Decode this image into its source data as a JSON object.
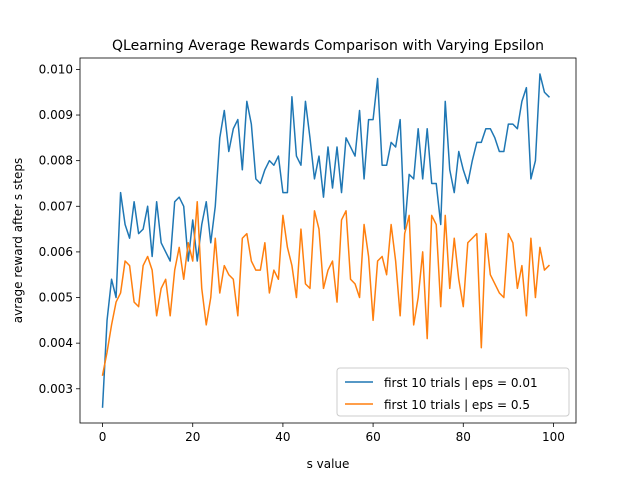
{
  "chart_data": {
    "type": "line",
    "title": "QLearning Average Rewards Comparison with Varying Epsilon",
    "xlabel": "s value",
    "ylabel": "avrage reward after s steps",
    "xlim": [
      -5,
      105
    ],
    "ylim": [
      0.00225,
      0.01025
    ],
    "xticks": [
      0,
      20,
      40,
      60,
      80,
      100
    ],
    "xtick_labels": [
      "0",
      "20",
      "40",
      "60",
      "80",
      "100"
    ],
    "yticks": [
      0.003,
      0.004,
      0.005,
      0.006,
      0.007,
      0.008,
      0.009,
      0.01
    ],
    "ytick_labels": [
      "0.003",
      "0.004",
      "0.005",
      "0.006",
      "0.007",
      "0.008",
      "0.009",
      "0.010"
    ],
    "grid": false,
    "legend_position": "lower right",
    "x": [
      0,
      1,
      2,
      3,
      4,
      5,
      6,
      7,
      8,
      9,
      10,
      11,
      12,
      13,
      14,
      15,
      16,
      17,
      18,
      19,
      20,
      21,
      22,
      23,
      24,
      25,
      26,
      27,
      28,
      29,
      30,
      31,
      32,
      33,
      34,
      35,
      36,
      37,
      38,
      39,
      40,
      41,
      42,
      43,
      44,
      45,
      46,
      47,
      48,
      49,
      50,
      51,
      52,
      53,
      54,
      55,
      56,
      57,
      58,
      59,
      60,
      61,
      62,
      63,
      64,
      65,
      66,
      67,
      68,
      69,
      70,
      71,
      72,
      73,
      74,
      75,
      76,
      77,
      78,
      79,
      80,
      81,
      82,
      83,
      84,
      85,
      86,
      87,
      88,
      89,
      90,
      91,
      92,
      93,
      94,
      95,
      96,
      97,
      98,
      99
    ],
    "series": [
      {
        "name": "first 10 trials | eps = 0.01",
        "color": "#1f77b4",
        "values": [
          0.0026,
          0.0045,
          0.0054,
          0.005,
          0.0073,
          0.0066,
          0.0063,
          0.0071,
          0.0064,
          0.0065,
          0.007,
          0.0059,
          0.0071,
          0.0062,
          0.006,
          0.0058,
          0.0071,
          0.0072,
          0.007,
          0.0058,
          0.0067,
          0.0058,
          0.0066,
          0.0071,
          0.0062,
          0.007,
          0.0085,
          0.0091,
          0.0082,
          0.0087,
          0.0089,
          0.0078,
          0.0093,
          0.0088,
          0.0076,
          0.0075,
          0.0078,
          0.008,
          0.0079,
          0.0081,
          0.0073,
          0.0073,
          0.0094,
          0.0081,
          0.0079,
          0.0093,
          0.0085,
          0.0076,
          0.0081,
          0.0072,
          0.0083,
          0.0074,
          0.0083,
          0.0073,
          0.0085,
          0.0083,
          0.0081,
          0.0091,
          0.0076,
          0.0089,
          0.0089,
          0.0098,
          0.0079,
          0.0079,
          0.0084,
          0.0083,
          0.0089,
          0.0065,
          0.0077,
          0.0076,
          0.0087,
          0.0076,
          0.0087,
          0.0075,
          0.0075,
          0.0066,
          0.0093,
          0.0078,
          0.0073,
          0.0082,
          0.0078,
          0.0075,
          0.008,
          0.0084,
          0.0084,
          0.0087,
          0.0087,
          0.0085,
          0.0082,
          0.0082,
          0.0088,
          0.0088,
          0.0087,
          0.0093,
          0.0096,
          0.0076,
          0.008,
          0.0099,
          0.0095,
          0.0094
        ]
      },
      {
        "name": "first 10 trials | eps = 0.5",
        "color": "#ff7f0e",
        "values": [
          0.0033,
          0.0038,
          0.0044,
          0.0049,
          0.0051,
          0.0058,
          0.0057,
          0.0049,
          0.0048,
          0.0057,
          0.0059,
          0.0056,
          0.0046,
          0.0052,
          0.0054,
          0.0046,
          0.0056,
          0.0061,
          0.0054,
          0.0062,
          0.0058,
          0.0071,
          0.0052,
          0.0044,
          0.005,
          0.0063,
          0.0051,
          0.0057,
          0.0055,
          0.0054,
          0.0046,
          0.0063,
          0.0064,
          0.0058,
          0.0056,
          0.0056,
          0.0062,
          0.0051,
          0.0056,
          0.0054,
          0.0068,
          0.0061,
          0.0057,
          0.005,
          0.0065,
          0.0053,
          0.0052,
          0.0069,
          0.0065,
          0.0052,
          0.0056,
          0.0058,
          0.0049,
          0.0067,
          0.0069,
          0.0054,
          0.0053,
          0.005,
          0.0066,
          0.0059,
          0.0045,
          0.0058,
          0.0059,
          0.0055,
          0.0066,
          0.0058,
          0.0046,
          0.0064,
          0.0068,
          0.0044,
          0.005,
          0.006,
          0.0041,
          0.0068,
          0.0066,
          0.0048,
          0.0068,
          0.0052,
          0.0063,
          0.0054,
          0.0048,
          0.0062,
          0.0063,
          0.0064,
          0.0039,
          0.0064,
          0.0055,
          0.0053,
          0.0051,
          0.005,
          0.0064,
          0.0062,
          0.0052,
          0.0057,
          0.0046,
          0.0063,
          0.005,
          0.0061,
          0.0056,
          0.0057
        ]
      }
    ]
  }
}
